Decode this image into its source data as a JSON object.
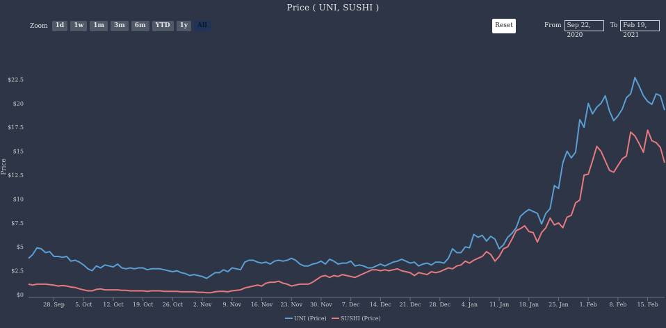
{
  "title": "Price ( UNI, SUSHI )",
  "zoom": {
    "label": "Zoom",
    "buttons": [
      "1d",
      "1w",
      "1m",
      "3m",
      "6m",
      "YTD",
      "1y",
      "All"
    ],
    "active": "All"
  },
  "reset_label": "Reset",
  "range": {
    "from_label": "From",
    "from_value": "Sep 22, 2020",
    "to_label": "To",
    "to_value": "Feb 19, 2021"
  },
  "colors": {
    "background": "#2e3547",
    "uni": "#5a9fd4",
    "sushi": "#e77a7f",
    "axis_text": "#cccccc"
  },
  "chart_data": {
    "type": "line",
    "title": "Price ( UNI, SUSHI )",
    "ylabel": "Price",
    "ylim": [
      0,
      25
    ],
    "grid": false,
    "legend_position": "bottom",
    "y_ticks": [
      "$0",
      "$2.5",
      "$5",
      "$7.5",
      "$10",
      "$12.5",
      "$15",
      "$17.5",
      "$20",
      "$22.5"
    ],
    "x_ticks": [
      "28. Sep",
      "5. Oct",
      "12. Oct",
      "19. Oct",
      "26. Oct",
      "2. Nov",
      "9. Nov",
      "16. Nov",
      "23. Nov",
      "30. Nov",
      "7. Dec",
      "14. Dec",
      "21. Dec",
      "28. Dec",
      "4. Jan",
      "11. Jan",
      "18. Jan",
      "25. Jan",
      "1. Feb",
      "8. Feb",
      "15. Feb"
    ],
    "x_start": "2020-09-22",
    "x_end": "2021-02-19",
    "series": [
      {
        "name": "UNI (Price)",
        "values": [
          3.8,
          4.2,
          4.9,
          4.8,
          4.4,
          4.5,
          4.0,
          4.0,
          3.9,
          4.0,
          3.5,
          3.6,
          3.4,
          3.1,
          2.7,
          2.5,
          3.0,
          2.8,
          3.1,
          3.0,
          2.9,
          3.2,
          2.8,
          2.7,
          2.8,
          2.7,
          2.8,
          2.8,
          2.6,
          2.7,
          2.7,
          2.7,
          2.6,
          2.5,
          2.4,
          2.5,
          2.3,
          2.2,
          2.0,
          2.1,
          2.0,
          1.9,
          1.7,
          2.0,
          2.3,
          2.3,
          2.6,
          2.4,
          2.8,
          2.7,
          2.6,
          3.4,
          3.6,
          3.6,
          3.4,
          3.3,
          3.4,
          3.2,
          3.5,
          3.6,
          3.5,
          3.6,
          3.8,
          3.6,
          3.2,
          3.0,
          3.0,
          3.2,
          3.3,
          3.5,
          3.2,
          3.7,
          3.5,
          3.2,
          3.3,
          3.3,
          3.5,
          3.0,
          3.1,
          3.0,
          2.8,
          2.8,
          3.0,
          3.2,
          3.0,
          3.2,
          3.4,
          3.5,
          3.7,
          3.5,
          3.3,
          3.4,
          3.0,
          3.2,
          3.3,
          3.1,
          3.4,
          3.4,
          3.3,
          3.8,
          4.8,
          4.4,
          4.4,
          5.0,
          4.9,
          6.3,
          6.0,
          6.2,
          5.6,
          6.1,
          5.8,
          4.8,
          5.2,
          6.0,
          6.4,
          7.0,
          8.2,
          8.6,
          8.9,
          8.7,
          8.5,
          7.4,
          8.5,
          9.0,
          11.4,
          11.1,
          13.8,
          15.0,
          14.3,
          14.9,
          18.3,
          17.5,
          20.0,
          18.9,
          19.6,
          20.0,
          20.8,
          19.2,
          18.2,
          18.7,
          19.4,
          20.6,
          21.0,
          22.7,
          21.8,
          20.8,
          20.2,
          19.9,
          21.0,
          20.8,
          19.3
        ],
        "color": "#5a9fd4"
      },
      {
        "name": "SUSHI (Price)",
        "values": [
          1.1,
          1.0,
          1.1,
          1.1,
          1.1,
          1.05,
          1.0,
          0.9,
          0.95,
          0.9,
          0.8,
          0.75,
          0.6,
          0.5,
          0.4,
          0.4,
          0.55,
          0.6,
          0.5,
          0.5,
          0.5,
          0.5,
          0.45,
          0.45,
          0.4,
          0.4,
          0.4,
          0.4,
          0.35,
          0.4,
          0.4,
          0.4,
          0.35,
          0.35,
          0.35,
          0.35,
          0.3,
          0.3,
          0.3,
          0.3,
          0.25,
          0.25,
          0.2,
          0.2,
          0.3,
          0.35,
          0.35,
          0.3,
          0.4,
          0.45,
          0.5,
          0.7,
          0.8,
          0.9,
          1.0,
          0.9,
          1.2,
          1.3,
          1.3,
          1.4,
          1.2,
          1.1,
          0.9,
          1.0,
          1.1,
          1.1,
          1.1,
          1.3,
          1.6,
          1.9,
          2.0,
          1.8,
          2.0,
          1.9,
          2.1,
          2.0,
          1.9,
          1.8,
          2.0,
          2.2,
          2.4,
          2.6,
          2.6,
          2.5,
          2.6,
          2.5,
          2.6,
          2.7,
          2.5,
          2.4,
          2.3,
          2.0,
          2.3,
          2.2,
          2.1,
          2.4,
          2.3,
          2.4,
          2.6,
          2.8,
          2.7,
          3.0,
          3.1,
          3.5,
          3.3,
          3.6,
          3.8,
          4.0,
          4.5,
          4.2,
          3.5,
          4.0,
          4.8,
          5.0,
          5.8,
          6.7,
          6.9,
          7.2,
          6.6,
          6.5,
          5.5,
          6.5,
          7.0,
          8.0,
          7.3,
          7.5,
          7.0,
          8.1,
          8.3,
          9.6,
          9.9,
          12.5,
          12.6,
          14.0,
          15.5,
          15.0,
          14.0,
          13.0,
          12.8,
          13.5,
          14.2,
          14.5,
          17.0,
          16.6,
          15.8,
          14.9,
          17.2,
          16.1,
          15.9,
          15.4,
          13.8
        ],
        "color": "#e77a7f"
      }
    ]
  }
}
